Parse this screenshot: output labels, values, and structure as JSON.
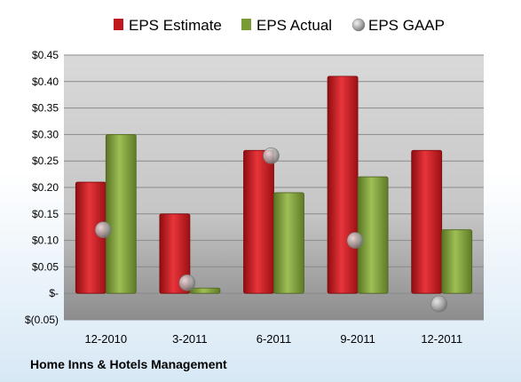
{
  "company": "Home Inns & Hotels Management",
  "chart_data": {
    "type": "bar",
    "categories": [
      "12-2010",
      "3-2011",
      "6-2011",
      "9-2011",
      "12-2011"
    ],
    "series": [
      {
        "name": "EPS Estimate",
        "kind": "bar",
        "color": "#c0181c",
        "values": [
          0.21,
          0.15,
          0.27,
          0.41,
          0.27
        ]
      },
      {
        "name": "EPS Actual",
        "kind": "bar",
        "color": "#7a9a35",
        "values": [
          0.3,
          0.01,
          0.19,
          0.22,
          0.12
        ]
      },
      {
        "name": "EPS GAAP",
        "kind": "point",
        "color": "#a8a8a8",
        "values": [
          0.12,
          0.02,
          0.26,
          0.1,
          -0.02
        ]
      }
    ],
    "y_ticks": [
      {
        "value": 0.45,
        "label": "$0.45"
      },
      {
        "value": 0.4,
        "label": "$0.40"
      },
      {
        "value": 0.35,
        "label": "$0.35"
      },
      {
        "value": 0.3,
        "label": "$0.30"
      },
      {
        "value": 0.25,
        "label": "$0.25"
      },
      {
        "value": 0.2,
        "label": "$0.20"
      },
      {
        "value": 0.15,
        "label": "$0.15"
      },
      {
        "value": 0.1,
        "label": "$0.10"
      },
      {
        "value": 0.05,
        "label": "$0.05"
      },
      {
        "value": 0.0,
        "label": "$-"
      },
      {
        "value": -0.05,
        "label": "$(0.05)"
      }
    ],
    "ylim": [
      -0.05,
      0.45
    ],
    "grid": true,
    "legend": "top"
  }
}
